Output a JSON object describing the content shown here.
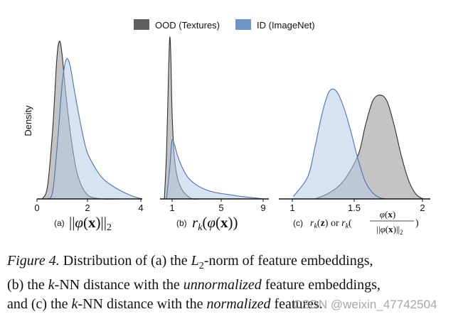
{
  "legend": [
    {
      "name": "OOD (Textures)",
      "color": "#5e5e5e"
    },
    {
      "name": "ID (ImageNet)",
      "color": "#6f95c8"
    }
  ],
  "colors": {
    "ood_fill": "#9c9c9c",
    "ood_line": "#303030",
    "id_fill": "#b8cce6",
    "id_line": "#4b72b5"
  },
  "ylabel": "Density",
  "chart_data": [
    {
      "type": "area",
      "panel_label": "(a)",
      "xlabel_math": "||φ(x)||₂",
      "xticks": [
        "0",
        "2",
        "4"
      ],
      "xlim": [
        0,
        4
      ],
      "series": [
        {
          "name": "OOD (Textures)",
          "x": [
            0.2,
            0.4,
            0.6,
            0.75,
            0.85,
            0.95,
            1.1,
            1.3,
            1.5,
            1.7,
            1.9,
            2.1,
            2.5,
            3.0,
            3.5
          ],
          "y": [
            0,
            0.08,
            0.45,
            0.88,
            1.0,
            0.92,
            0.66,
            0.38,
            0.18,
            0.08,
            0.03,
            0.01,
            0,
            0,
            0
          ]
        },
        {
          "name": "ID (ImageNet)",
          "x": [
            0.4,
            0.6,
            0.8,
            0.95,
            1.1,
            1.25,
            1.45,
            1.7,
            1.9,
            2.2,
            2.5,
            2.8,
            3.2,
            3.6,
            4.0
          ],
          "y": [
            0,
            0.05,
            0.4,
            0.72,
            0.88,
            0.85,
            0.66,
            0.44,
            0.3,
            0.2,
            0.13,
            0.09,
            0.05,
            0.02,
            0
          ]
        }
      ]
    },
    {
      "type": "area",
      "panel_label": "(b)",
      "xlabel_math": "r_k(φ(x))",
      "xticks": [
        "1",
        "5",
        "9"
      ],
      "xlim": [
        0,
        10
      ],
      "series": [
        {
          "name": "OOD (Textures)",
          "x": [
            0.4,
            0.6,
            0.8,
            0.9,
            1.0,
            1.1,
            1.3,
            1.6,
            2.0,
            2.5,
            3.0,
            3.5
          ],
          "y": [
            0,
            0.3,
            0.82,
            1.0,
            0.86,
            0.55,
            0.27,
            0.13,
            0.06,
            0.02,
            0,
            0
          ]
        },
        {
          "name": "ID (ImageNet)",
          "x": [
            0.6,
            0.9,
            1.1,
            1.3,
            1.6,
            2.0,
            2.6,
            3.5,
            4.5,
            5.5,
            6.5,
            7.5,
            8.5,
            9.5
          ],
          "y": [
            0,
            0.2,
            0.36,
            0.34,
            0.27,
            0.2,
            0.13,
            0.08,
            0.05,
            0.035,
            0.025,
            0.015,
            0.008,
            0
          ]
        }
      ]
    },
    {
      "type": "area",
      "panel_label": "(c)",
      "xlabel_math": "r_k(z) or r_k(φ(x)/||φ(x)||₂)",
      "xticks": [
        "1",
        "1.5",
        "2"
      ],
      "xlim": [
        0.95,
        2.0
      ],
      "series": [
        {
          "name": "OOD (Textures)",
          "x": [
            1.2,
            1.3,
            1.4,
            1.5,
            1.55,
            1.6,
            1.65,
            1.7,
            1.75,
            1.8,
            1.85,
            1.9,
            1.95
          ],
          "y": [
            0,
            0.05,
            0.15,
            0.36,
            0.6,
            0.8,
            0.85,
            0.8,
            0.6,
            0.35,
            0.15,
            0.04,
            0
          ]
        },
        {
          "name": "ID (ImageNet)",
          "x": [
            1.05,
            1.15,
            1.2,
            1.25,
            1.3,
            1.35,
            1.4,
            1.45,
            1.5,
            1.55,
            1.6,
            1.65,
            1.7
          ],
          "y": [
            0.02,
            0.18,
            0.42,
            0.7,
            0.88,
            0.88,
            0.75,
            0.55,
            0.32,
            0.14,
            0.05,
            0.01,
            0
          ]
        }
      ]
    }
  ],
  "caption": {
    "fig_label": "Figure 4.",
    "line1_a": " Distribution of (a) the ",
    "math_L": "L",
    "sub_2": "2",
    "line1_b": "-norm of feature embeddings,",
    "line2_a": "(b) the ",
    "math_k": "k",
    "line2_b": "-NN distance with the ",
    "unnormalized": "unnormalized",
    "line2_c": " feature embeddings,",
    "line3_a": "and (c) the ",
    "line3_b": "-NN distance with the ",
    "normalized": "normalized",
    "line3_c": " features."
  },
  "watermark": "CSDN @weixin_47742504"
}
